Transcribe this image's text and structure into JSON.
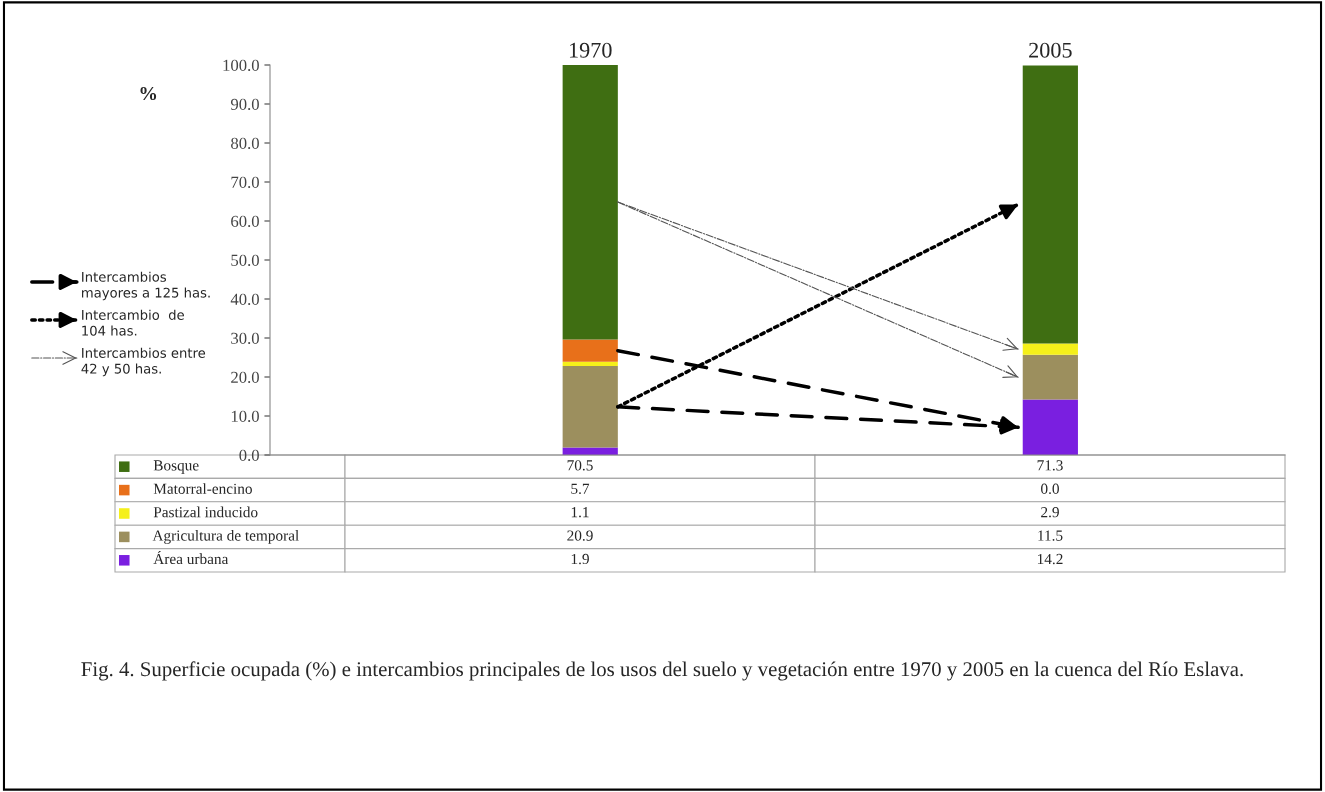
{
  "chart_data": {
    "type": "bar",
    "stacked": true,
    "ylabel": "%",
    "categories": [
      "1970",
      "2005"
    ],
    "series": [
      {
        "name": "Área urbana",
        "color": "#7a1fe0",
        "values": [
          1.9,
          14.2
        ],
        "value_labels": [
          "1.9",
          "14.2"
        ]
      },
      {
        "name": "Agricultura de temporal",
        "color": "#9c8f5e",
        "values": [
          20.9,
          11.5
        ],
        "value_labels": [
          "20.9",
          "11.5"
        ]
      },
      {
        "name": "Pastizal inducido",
        "color": "#f5f01a",
        "values": [
          1.1,
          2.9
        ],
        "value_labels": [
          "1.1",
          "2.9"
        ]
      },
      {
        "name": "Matorral-encino",
        "color": "#e8701a",
        "values": [
          5.7,
          0.0
        ],
        "value_labels": [
          "5.7",
          "0.0"
        ]
      },
      {
        "name": "Bosque",
        "color": "#3f6e12",
        "values": [
          70.5,
          71.3
        ],
        "value_labels": [
          "70.5",
          "71.3"
        ]
      }
    ],
    "ylim": [
      0,
      100
    ],
    "yticks": [
      {
        "value": 0,
        "label": "0.0"
      },
      {
        "value": 10,
        "label": "10.0"
      },
      {
        "value": 20,
        "label": "20.0"
      },
      {
        "value": 30,
        "label": "30.0"
      },
      {
        "value": 40,
        "label": "40.0"
      },
      {
        "value": 50,
        "label": "50.0"
      },
      {
        "value": 60,
        "label": "60.0"
      },
      {
        "value": 70,
        "label": "70.0"
      },
      {
        "value": 80,
        "label": "80.0"
      },
      {
        "value": 90,
        "label": "90.0"
      },
      {
        "value": 100,
        "label": "100.0"
      }
    ],
    "grid": false,
    "legend": "bottom",
    "annotations": [
      "Intercambios\nmayores a 125 has.",
      "Intercambio  de\n104 has.",
      "Intercambios entre\n42 y 50 has.",
      "Fig. 4. Superficie ocupada (%) e intercambios principales de los usos del suelo y vegetación entre 1970 y 2005 en la cuenca del Río Eslava."
    ]
  }
}
